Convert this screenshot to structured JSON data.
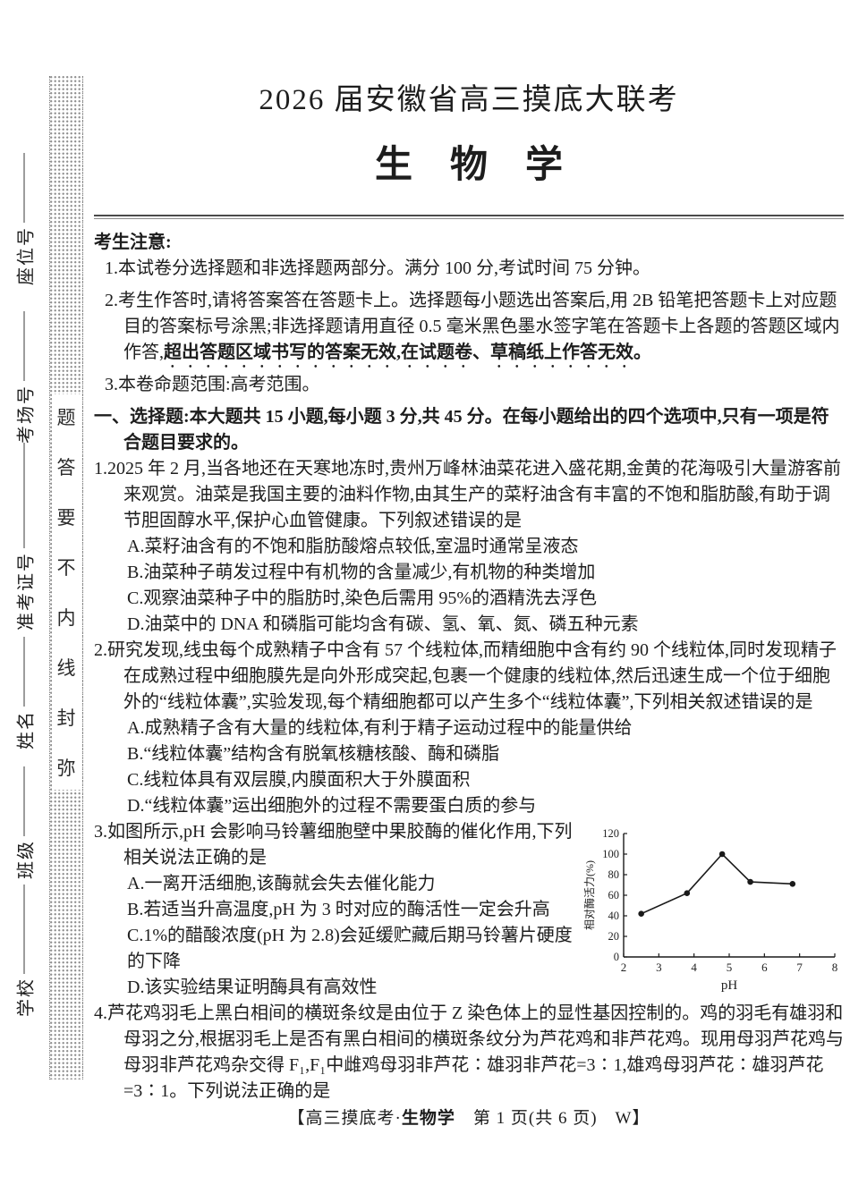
{
  "page": {
    "title": "2026 届安徽省高三摸底大联考",
    "subject": "生　物　学",
    "footer_prefix": "【高三摸底考·",
    "footer_subject": "生物学",
    "footer_suffix": "　第 1 页(共 6 页)　W】"
  },
  "sidebar": {
    "fields": [
      {
        "label": "座位号"
      },
      {
        "label": "考场号"
      },
      {
        "label": "准考证号"
      },
      {
        "label": "姓名"
      },
      {
        "label": "班级"
      },
      {
        "label": "学校"
      }
    ],
    "seal_text": "弥封线内不要答题",
    "seal_chars": [
      "题",
      "答",
      "要",
      "不",
      "内",
      "线",
      "封",
      "弥"
    ]
  },
  "notice": {
    "heading": "考生注意:",
    "items": [
      {
        "text": "1.本试卷分选择题和非选择题两部分。满分 100 分,考试时间 75 分钟。",
        "emphasis": ""
      },
      {
        "text": "2.考生作答时,请将答案答在答题卡上。选择题每小题选出答案后,用 2B 铅笔把答题卡上对应题目的答案标号涂黑;非选择题请用直径 0.5 毫米黑色墨水签字笔在答题卡上各题的答题区域内作答,",
        "emphasis": "超出答题区域书写的答案无效,在试题卷、草稿纸上作答无效。"
      },
      {
        "text": "3.本卷命题范围:高考范围。",
        "emphasis": ""
      }
    ]
  },
  "section": {
    "heading": "一、选择题:本大题共 15 小题,每小题 3 分,共 45 分。在每小题给出的四个选项中,只有一项是符合题目要求的。"
  },
  "questions": [
    {
      "number": "1.",
      "stem": "2025 年 2 月,当各地还在天寒地冻时,贵州万峰林油菜花进入盛花期,金黄的花海吸引大量游客前来观赏。油菜是我国主要的油料作物,由其生产的菜籽油含有丰富的不饱和脂肪酸,有助于调节胆固醇水平,保护心血管健康。下列叙述错误的是",
      "options": [
        "A.菜籽油含有的不饱和脂肪酸熔点较低,室温时通常呈液态",
        "B.油菜种子萌发过程中有机物的含量减少,有机物的种类增加",
        "C.观察油菜种子中的脂肪时,染色后需用 95%的酒精洗去浮色",
        "D.油菜中的 DNA 和磷脂可能均含有碳、氢、氧、氮、磷五种元素"
      ]
    },
    {
      "number": "2.",
      "stem": "研究发现,线虫每个成熟精子中含有 57 个线粒体,而精细胞中含有约 90 个线粒体,同时发现精子在成熟过程中细胞膜先是向外形成突起,包裹一个健康的线粒体,然后迅速生成一个位于细胞外的“线粒体囊”,实验发现,每个精细胞都可以产生多个“线粒体囊”,下列相关叙述错误的是",
      "options": [
        "A.成熟精子含有大量的线粒体,有利于精子运动过程中的能量供给",
        "B.“线粒体囊”结构含有脱氧核糖核酸、酶和磷脂",
        "C.线粒体具有双层膜,内膜面积大于外膜面积",
        "D.“线粒体囊”运出细胞外的过程不需要蛋白质的参与"
      ]
    },
    {
      "number": "3.",
      "stem": "如图所示,pH 会影响马铃薯细胞壁中果胶酶的催化作用,下列相关说法正确的是",
      "options": [
        "A.一离开活细胞,该酶就会失去催化能力",
        "B.若适当升高温度,pH 为 3 时对应的酶活性一定会升高",
        "C.1%的醋酸浓度(pH 为 2.8)会延缓贮藏后期马铃薯片硬度的下降",
        "D.该实验结果证明酶具有高效性"
      ]
    },
    {
      "number": "4.",
      "stem": "芦花鸡羽毛上黑白相间的横斑条纹是由位于 Z 染色体上的显性基因控制的。鸡的羽毛有雄羽和母羽之分,根据羽毛上是否有黑白相间的横斑条纹分为芦花鸡和非芦花鸡。现用母羽芦花鸡与母羽非芦花鸡杂交得 F₁,F₁中雌鸡母羽非芦花∶雄羽非芦花=3∶1,雄鸡母羽芦花∶雄羽芦花=3∶1。下列说法正确的是",
      "options": []
    }
  ],
  "chart_data": {
    "type": "line",
    "title": "",
    "xlabel": "pH",
    "ylabel": "相对酶活力(%)",
    "x": [
      2.5,
      3.8,
      4.8,
      5.6,
      6.8
    ],
    "y": [
      42,
      62,
      100,
      73,
      71
    ],
    "xlim": [
      2,
      8
    ],
    "ylim": [
      0,
      120
    ],
    "xticks": [
      2,
      3,
      4,
      5,
      6,
      7,
      8
    ],
    "yticks": [
      0,
      20,
      40,
      60,
      80,
      100,
      120
    ],
    "grid": false,
    "legend_position": "none",
    "marker": "filled-circle",
    "line_color": "#1a1a1a"
  }
}
